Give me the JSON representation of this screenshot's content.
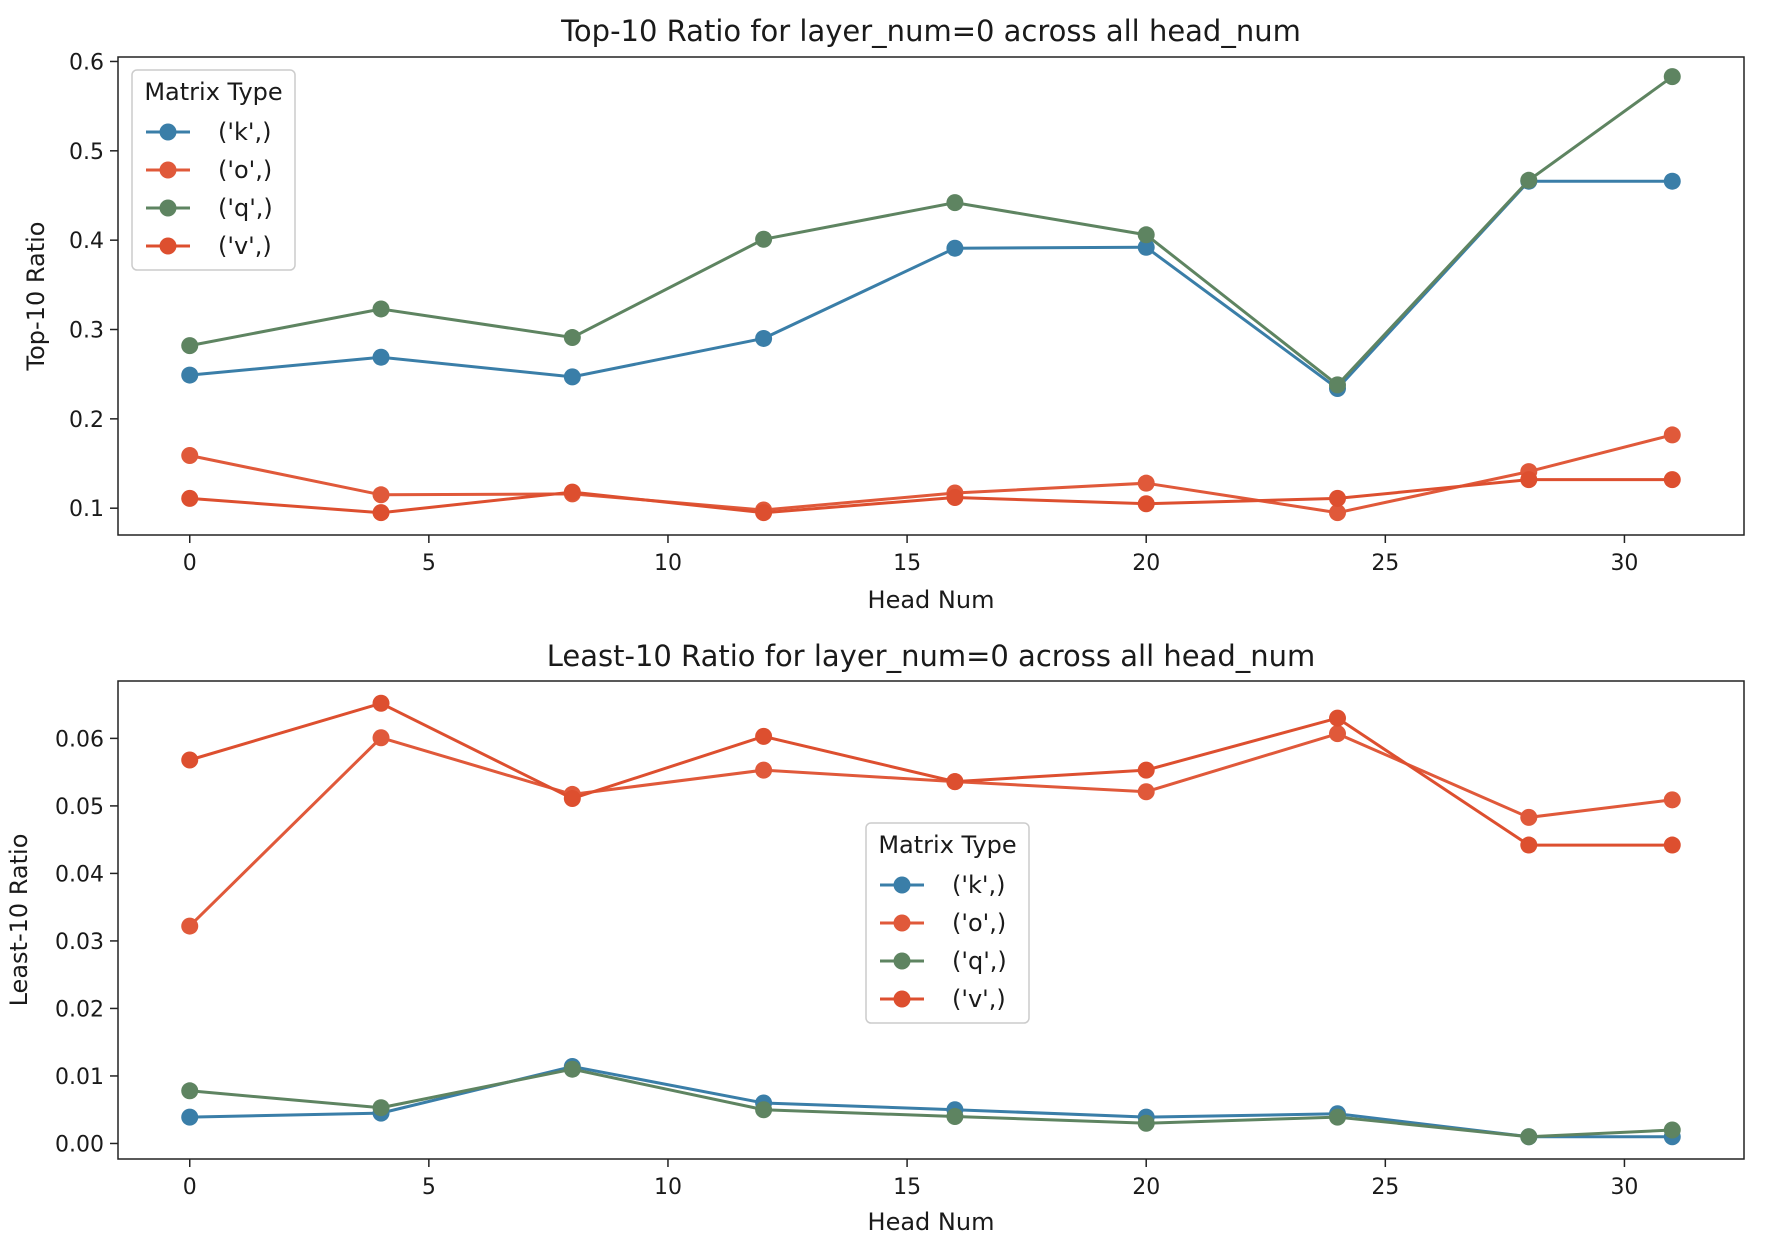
{
  "colors": {
    "k": "#3a7ea8",
    "o": "#e0593a",
    "q": "#5e8461",
    "v": "#dd4f2f"
  },
  "chart_data": [
    {
      "type": "line",
      "title": "Top-10 Ratio for layer_num=0 across all head_num",
      "xlabel": "Head Num",
      "ylabel": "Top-10 Ratio",
      "xlim": [
        -1.5,
        32.5
      ],
      "ylim": [
        0.07,
        0.605
      ],
      "xticks": [
        0,
        5,
        10,
        15,
        20,
        25,
        30
      ],
      "yticks": [
        0.1,
        0.2,
        0.3,
        0.4,
        0.5,
        0.6
      ],
      "ytick_labels": [
        "0.1",
        "0.2",
        "0.3",
        "0.4",
        "0.5",
        "0.6"
      ],
      "x": [
        0,
        4,
        8,
        12,
        16,
        20,
        24,
        28,
        31
      ],
      "legend": {
        "title": "Matrix Type",
        "placement": "upper left"
      },
      "grid": false,
      "series": [
        {
          "name": "('k',)",
          "key": "k",
          "values": [
            0.249,
            0.269,
            0.247,
            0.29,
            0.391,
            0.392,
            0.234,
            0.466,
            0.466
          ]
        },
        {
          "name": "('o',)",
          "key": "o",
          "values": [
            0.159,
            0.115,
            0.116,
            0.098,
            0.117,
            0.128,
            0.095,
            0.141,
            0.182
          ]
        },
        {
          "name": "('q',)",
          "key": "q",
          "values": [
            0.282,
            0.323,
            0.291,
            0.401,
            0.442,
            0.406,
            0.238,
            0.467,
            0.583
          ]
        },
        {
          "name": "('v',)",
          "key": "v",
          "values": [
            0.111,
            0.095,
            0.118,
            0.095,
            0.112,
            0.105,
            0.111,
            0.132,
            0.132
          ]
        }
      ]
    },
    {
      "type": "line",
      "title": "Least-10 Ratio for layer_num=0 across all head_num",
      "xlabel": "Head Num",
      "ylabel": "Least-10 Ratio",
      "xlim": [
        -1.5,
        32.5
      ],
      "ylim": [
        -0.0023,
        0.0685
      ],
      "xticks": [
        0,
        5,
        10,
        15,
        20,
        25,
        30
      ],
      "yticks": [
        0.0,
        0.01,
        0.02,
        0.03,
        0.04,
        0.05,
        0.06
      ],
      "ytick_labels": [
        "0.00",
        "0.01",
        "0.02",
        "0.03",
        "0.04",
        "0.05",
        "0.06"
      ],
      "x": [
        0,
        4,
        8,
        12,
        16,
        20,
        24,
        28,
        31
      ],
      "legend": {
        "title": "Matrix Type",
        "placement": "center"
      },
      "grid": false,
      "series": [
        {
          "name": "('k',)",
          "key": "k",
          "values": [
            0.0039,
            0.0045,
            0.0114,
            0.006,
            0.005,
            0.0039,
            0.0044,
            0.001,
            0.001
          ]
        },
        {
          "name": "('o',)",
          "key": "o",
          "values": [
            0.0322,
            0.0601,
            0.0517,
            0.0553,
            0.0536,
            0.0521,
            0.0607,
            0.0483,
            0.0509
          ]
        },
        {
          "name": "('q',)",
          "key": "q",
          "values": [
            0.0078,
            0.0053,
            0.011,
            0.005,
            0.004,
            0.003,
            0.0039,
            0.001,
            0.002
          ]
        },
        {
          "name": "('v',)",
          "key": "v",
          "values": [
            0.0568,
            0.0652,
            0.0511,
            0.0603,
            0.0536,
            0.0553,
            0.063,
            0.0442,
            0.0442
          ]
        }
      ]
    }
  ]
}
